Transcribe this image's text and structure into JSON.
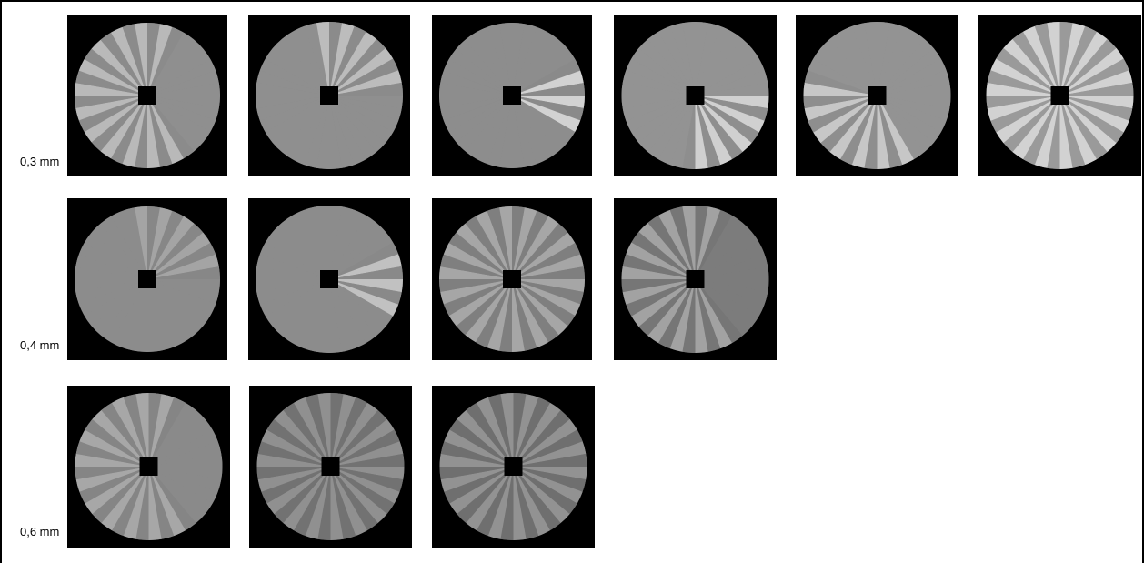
{
  "rows": [
    {
      "label": "0,3 mm",
      "pattern_count": 6
    },
    {
      "label": "0,4 mm",
      "pattern_count": 4
    },
    {
      "label": "0,6 mm",
      "pattern_count": 3
    }
  ]
}
